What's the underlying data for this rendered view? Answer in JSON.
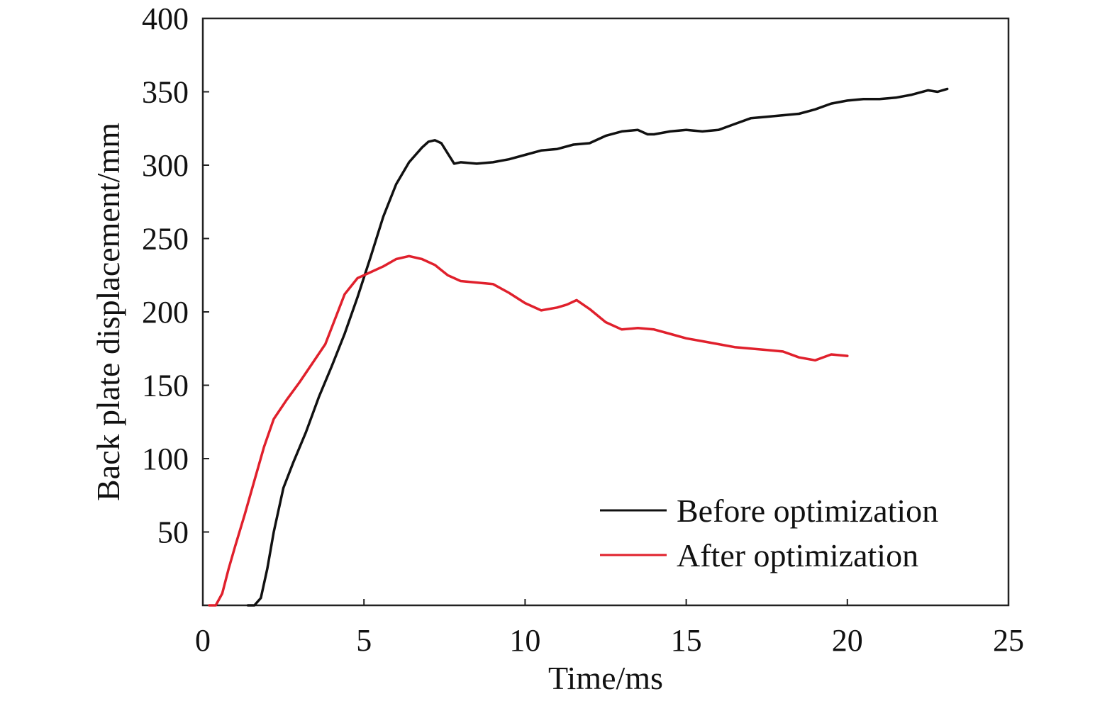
{
  "chart_data": {
    "type": "line",
    "title": "",
    "xlabel": "Time/ms",
    "ylabel": "Back plate displacement/mm",
    "xlim": [
      0,
      25
    ],
    "ylim": [
      0,
      400
    ],
    "x_ticks": [
      "0",
      "5",
      "10",
      "15",
      "20",
      "25"
    ],
    "y_ticks": [
      "50",
      "100",
      "150",
      "200",
      "250",
      "300",
      "350",
      "400"
    ],
    "grid": false,
    "legend_position": "bottom-right",
    "series": [
      {
        "name": "Before optimization",
        "color": "#111111",
        "x": [
          1.4,
          1.6,
          1.8,
          2.0,
          2.2,
          2.5,
          2.8,
          3.2,
          3.6,
          4.0,
          4.4,
          4.8,
          5.2,
          5.6,
          6.0,
          6.4,
          6.8,
          7.0,
          7.2,
          7.4,
          7.6,
          7.8,
          8.0,
          8.5,
          9.0,
          9.5,
          10.0,
          10.5,
          11.0,
          11.5,
          12.0,
          12.5,
          13.0,
          13.5,
          13.8,
          14.0,
          14.5,
          15.0,
          15.5,
          16.0,
          16.5,
          17.0,
          17.5,
          18.0,
          18.5,
          19.0,
          19.5,
          20.0,
          20.5,
          21.0,
          21.5,
          22.0,
          22.5,
          22.8,
          23.1
        ],
        "y": [
          0,
          0,
          5,
          25,
          50,
          80,
          97,
          118,
          142,
          163,
          185,
          210,
          237,
          265,
          287,
          302,
          312,
          316,
          317,
          315,
          308,
          301,
          302,
          301,
          302,
          304,
          307,
          310,
          311,
          314,
          315,
          320,
          323,
          324,
          321,
          321,
          323,
          324,
          323,
          324,
          328,
          332,
          333,
          334,
          335,
          338,
          342,
          344,
          345,
          345,
          346,
          348,
          351,
          350,
          352
        ]
      },
      {
        "name": "After optimization",
        "color": "#e0202c",
        "x": [
          0.2,
          0.4,
          0.6,
          0.8,
          1.0,
          1.3,
          1.6,
          1.9,
          2.2,
          2.6,
          3.0,
          3.4,
          3.8,
          4.1,
          4.4,
          4.8,
          5.2,
          5.6,
          6.0,
          6.4,
          6.8,
          7.2,
          7.6,
          8.0,
          8.5,
          9.0,
          9.5,
          10.0,
          10.5,
          11.0,
          11.3,
          11.6,
          12.0,
          12.5,
          13.0,
          13.5,
          14.0,
          14.5,
          15.0,
          15.5,
          16.0,
          16.5,
          17.0,
          17.5,
          18.0,
          18.5,
          19.0,
          19.5,
          20.0
        ],
        "y": [
          0,
          0,
          8,
          25,
          40,
          62,
          85,
          108,
          127,
          140,
          152,
          165,
          178,
          195,
          212,
          223,
          227,
          231,
          236,
          238,
          236,
          232,
          225,
          221,
          220,
          219,
          213,
          206,
          201,
          203,
          205,
          208,
          202,
          193,
          188,
          189,
          188,
          185,
          182,
          180,
          178,
          176,
          175,
          174,
          173,
          169,
          167,
          171,
          170
        ]
      }
    ]
  }
}
